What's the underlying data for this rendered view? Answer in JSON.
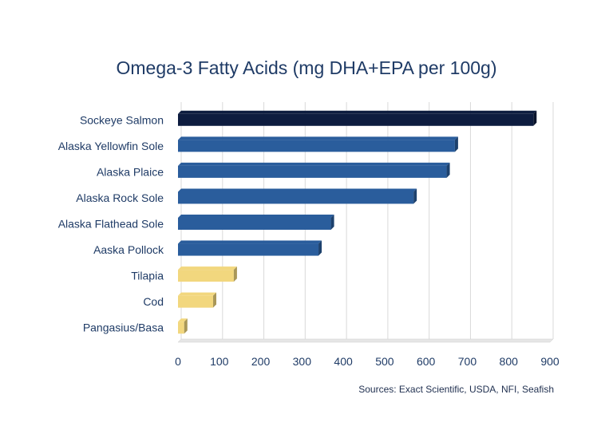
{
  "chart_data": {
    "type": "bar",
    "orientation": "horizontal",
    "title": "Omega-3 Fatty Acids (mg DHA+EPA per 100g)",
    "categories": [
      "Sockeye Salmon",
      "Alaska Yellowfin Sole",
      "Alaska Plaice",
      "Alaska Rock Sole",
      "Alaska Flathead Sole",
      "Aaska Pollock",
      "Tilapia",
      "Cod",
      "Pangasius/Basa"
    ],
    "values": [
      860,
      670,
      650,
      570,
      370,
      340,
      135,
      85,
      15
    ],
    "colors": [
      "#0d1c3f",
      "#2a5d9c",
      "#2a5d9c",
      "#2a5d9c",
      "#2a5d9c",
      "#2a5d9c",
      "#f2d77e",
      "#f2d77e",
      "#f2d77e"
    ],
    "xlim": [
      0,
      900
    ],
    "xticks": [
      0,
      100,
      200,
      300,
      400,
      500,
      600,
      700,
      800,
      900
    ],
    "xlabel": "",
    "ylabel": "",
    "grid": true,
    "legend": "none",
    "source": "Sources: Exact Scientific, USDA, NFI, Seafish"
  }
}
